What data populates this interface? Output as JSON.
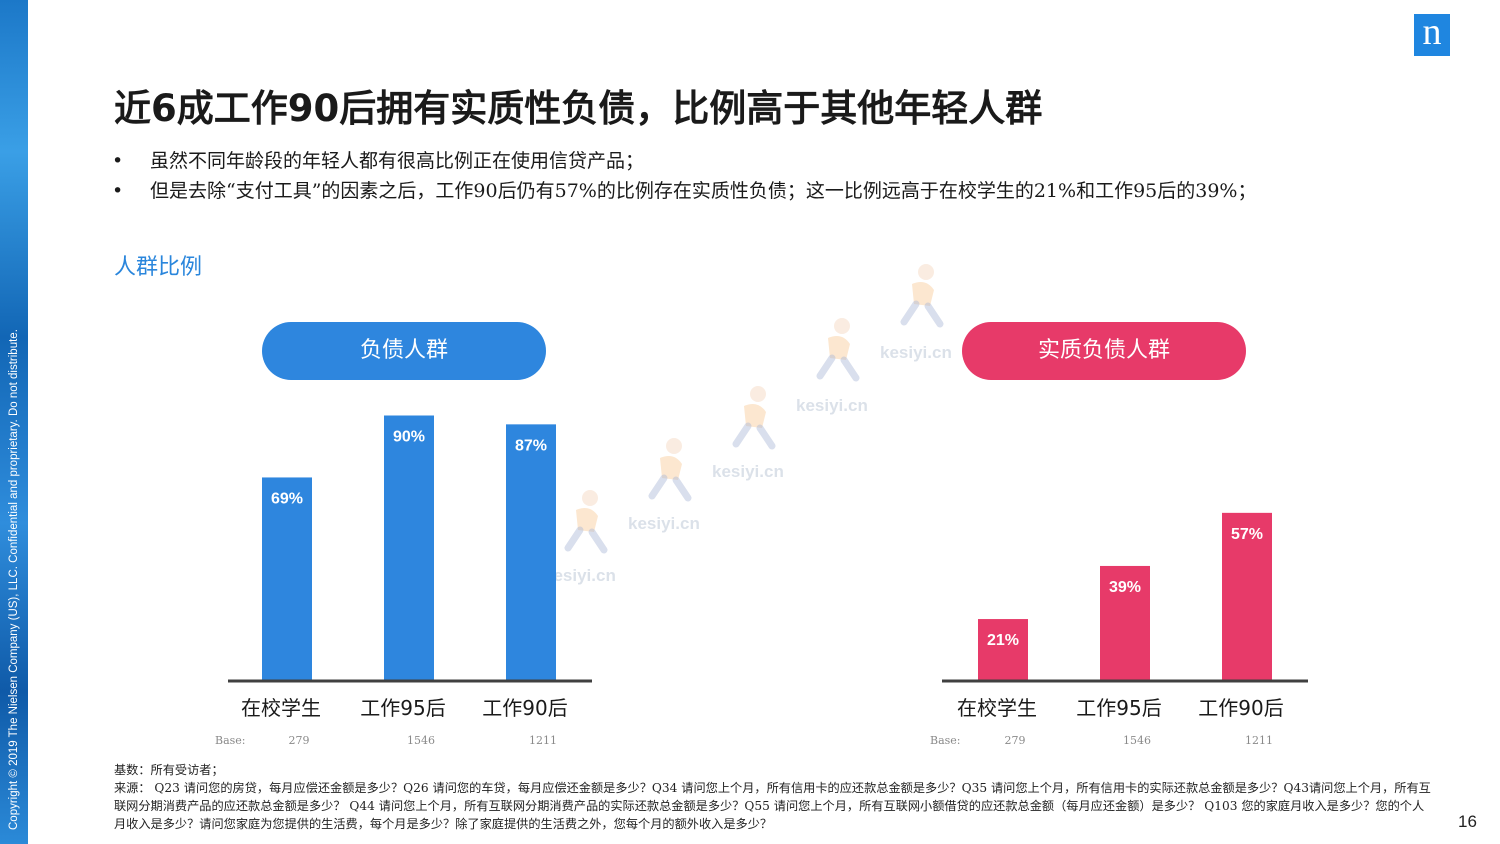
{
  "slide": {
    "title": "近6成工作90后拥有实质性负债，比例高于其他年轻人群",
    "bullets": [
      "虽然不同年龄段的年轻人都有很高比例正在使用信贷产品；",
      "但是去除“支付工具”的因素之后，工作90后仍有57%的比例存在实质性负债；这一比例远高于在校学生的21%和工作95后的39%；"
    ],
    "section_label": "人群比例",
    "copyright": "Copyright © 2019 The Nielsen Company (US), LLC. Confidential and proprietary. Do not distribute.",
    "logo_letter": "n",
    "page_number": "16",
    "notes": [
      "基数：所有受访者；",
      "来源： Q23 请问您的房贷，每月应偿还金额是多少？Q26 请问您的车贷，每月应偿还金额是多少？Q34 请问您上个月，所有信用卡的应还款总金额是多少？Q35 请问您上个月，所有信用卡的实际还款总金额是多少？Q43请问您上个月，所有互联网分期消费产品的应还款总金额是多少？ Q44 请问您上个月，所有互联网分期消费产品的实际还款总金额是多少？Q55 请问您上个月，所有互联网小额借贷的应还款总金额（每月应还金额）是多少？ Q103 您的家庭月收入是多少？您的个人月收入是多少？请问您家庭为您提供的生活费，每个月是多少？除了家庭提供的生活费之外，您每个月的额外收入是多少？"
    ],
    "watermark": "kesiyi.cn",
    "colors": {
      "blue": "#2e86de",
      "pink": "#e73a69",
      "accent_text": "#2a86dc"
    }
  },
  "chart_data": [
    {
      "type": "bar",
      "title": "负债人群",
      "categories": [
        "在校学生",
        "工作95后",
        "工作90后"
      ],
      "values": [
        69,
        90,
        87
      ],
      "value_labels": [
        "69%",
        "90%",
        "87%"
      ],
      "unit": "%",
      "base_label": "Base:",
      "base": [
        "279",
        "1546",
        "1211"
      ],
      "ylim": [
        0,
        100
      ],
      "grid": false,
      "color": "#2e86de"
    },
    {
      "type": "bar",
      "title": "实质负债人群",
      "categories": [
        "在校学生",
        "工作95后",
        "工作90后"
      ],
      "values": [
        21,
        39,
        57
      ],
      "value_labels": [
        "21%",
        "39%",
        "57%"
      ],
      "unit": "%",
      "base_label": "Base:",
      "base": [
        "279",
        "1546",
        "1211"
      ],
      "ylim": [
        0,
        100
      ],
      "grid": false,
      "color": "#e73a69"
    }
  ]
}
